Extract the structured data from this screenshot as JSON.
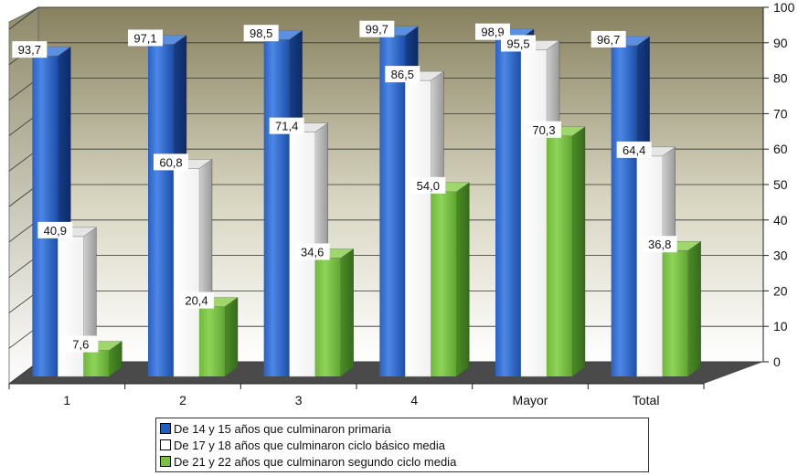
{
  "chart_data": {
    "type": "bar",
    "categories": [
      "1",
      "2",
      "3",
      "4",
      "Mayor",
      "Total"
    ],
    "series": [
      {
        "name": "De 14 y 15 años que culminaron primaria",
        "color": "#1f5fbf",
        "values": [
          93.7,
          97.1,
          98.5,
          99.7,
          98.9,
          96.7
        ],
        "labels": [
          "93,7",
          "97,1",
          "98,5",
          "99,7",
          "98,9",
          "96,7"
        ]
      },
      {
        "name": "De 17 y 18 años que culminaron ciclo básico media",
        "color": "#ffffff",
        "values": [
          40.9,
          60.8,
          71.4,
          86.5,
          95.5,
          64.4
        ],
        "labels": [
          "40,9",
          "60,8",
          "71,4",
          "86,5",
          "95,5",
          "64,4"
        ]
      },
      {
        "name": "De 21 y 22 años que culminaron segundo ciclo media",
        "color": "#7ac142",
        "values": [
          7.6,
          20.4,
          34.6,
          54.0,
          70.3,
          36.8
        ],
        "labels": [
          "7,6",
          "20,4",
          "34,6",
          "54,0",
          "70,3",
          "36,8"
        ]
      }
    ],
    "ylim": [
      0,
      100
    ],
    "yticks": [
      "0",
      "10",
      "20",
      "30",
      "40",
      "50",
      "60",
      "70",
      "80",
      "90",
      "100"
    ],
    "grid": true,
    "legend_position": "bottom",
    "colors": {
      "wall_top": "#8a8464",
      "wall_bottom": "#ffffff",
      "floor": "#4a4a4a"
    }
  }
}
